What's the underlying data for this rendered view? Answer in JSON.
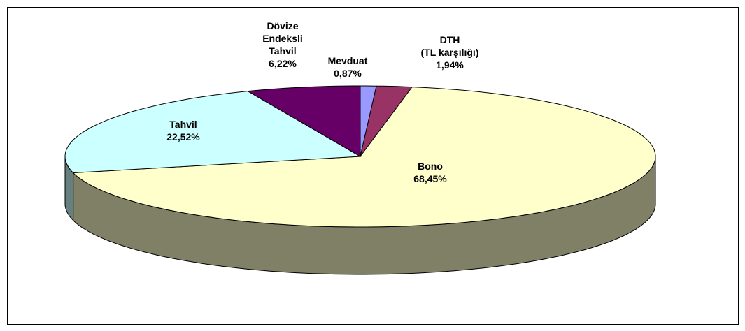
{
  "chart_data": {
    "type": "pie3d",
    "categories": [
      [
        "Mevduat"
      ],
      [
        "DTH",
        "(TL karşılığı)"
      ],
      [
        "Bono"
      ],
      [
        "Tahvil"
      ],
      [
        "Dövize",
        "Endeksli",
        "Tahvil"
      ]
    ],
    "values": [
      0.87,
      1.94,
      68.45,
      22.52,
      6.22
    ],
    "value_labels": [
      "0,87%",
      "1,94%",
      "68,45%",
      "22,52%",
      "6,22%"
    ],
    "colors": [
      "#9999ff",
      "#993366",
      "#ffffcc",
      "#ccffff",
      "#660066"
    ]
  }
}
